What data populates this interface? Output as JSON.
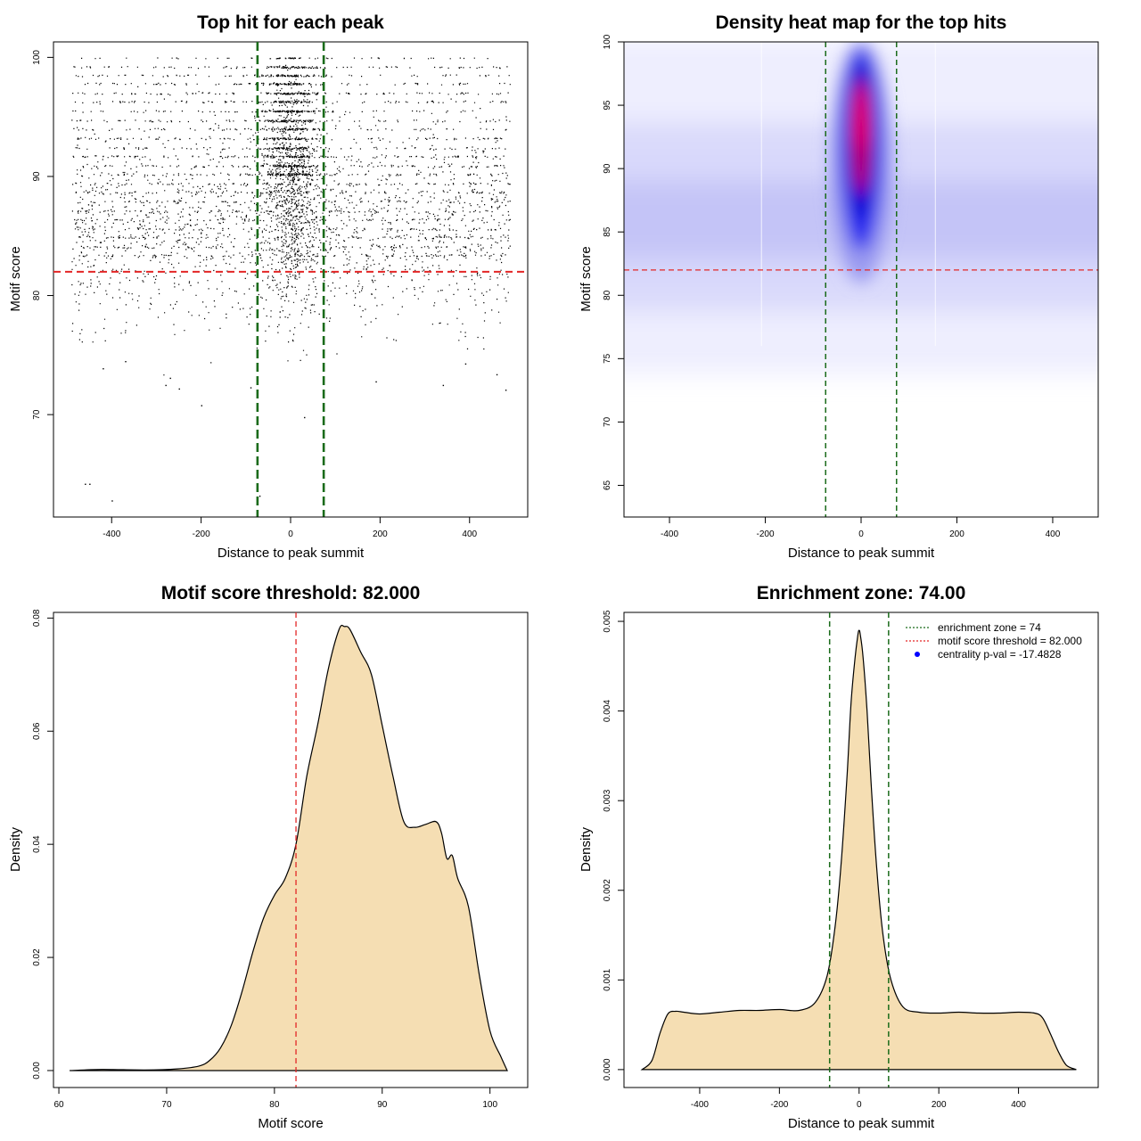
{
  "chart_data": [
    {
      "type": "scatter",
      "title": "Top hit for each peak",
      "xlabel": "Distance to peak summit",
      "ylabel": "Motif score",
      "xlim": [
        -530,
        530
      ],
      "ylim": [
        61.4,
        101.3
      ],
      "xticks": [
        -400,
        -200,
        0,
        200,
        400
      ],
      "yticks": [
        70,
        80,
        90,
        100
      ],
      "hline": 82.0,
      "vlines": [
        -74,
        74
      ],
      "hline_color": "#e32626",
      "vline_color": "#1a6b1a",
      "points": [
        [
          -460,
          64.2
        ],
        [
          -450,
          64.2
        ],
        [
          -400,
          62.8
        ],
        [
          -200,
          70.8
        ],
        [
          -280,
          72.5
        ],
        [
          -270,
          73.1
        ],
        [
          -250,
          72.2
        ],
        [
          -70,
          63.2
        ],
        [
          30,
          69.8
        ],
        [
          -420,
          73.9
        ],
        [
          -370,
          74.5
        ],
        [
          480,
          72.1
        ],
        [
          460,
          73.4
        ],
        [
          -90,
          72.3
        ],
        [
          340,
          72.5
        ],
        [
          190,
          72.8
        ],
        [
          390,
          74.3
        ]
      ],
      "dense_region": {
        "x_range": [
          -490,
          490
        ],
        "y_range": [
          72,
          100
        ],
        "peak_x": 0,
        "note_rows_y": [
          100,
          99.2,
          98.5,
          97.8,
          97.0,
          96.3,
          95.5,
          94.7,
          94.0,
          93.2,
          92.4,
          91.7,
          90.9,
          90.2,
          89.4,
          88.7,
          87.9,
          87.1,
          86.4,
          85.6,
          84.9,
          84.1,
          83.4
        ]
      }
    },
    {
      "type": "heatmap",
      "title": "Density heat map for the top hits",
      "xlabel": "Distance to peak summit",
      "ylabel": "Motif score",
      "xlim": [
        -495,
        495
      ],
      "ylim": [
        62.5,
        100
      ],
      "xticks": [
        -400,
        -200,
        0,
        200,
        400
      ],
      "yticks": [
        65,
        70,
        75,
        80,
        85,
        90,
        95,
        100
      ],
      "hline": 82.0,
      "vlines": [
        -74,
        74
      ],
      "background_band": {
        "y_center": 85.5,
        "y_spread": 4.5
      },
      "hotspot": {
        "x_center": 0,
        "x_spread": 28,
        "y_range": [
          85,
          99
        ],
        "peak_y": 94
      }
    },
    {
      "type": "area",
      "title": "Motif score threshold: 82.000",
      "xlabel": "Motif score",
      "ylabel": "Density",
      "xlim": [
        59.5,
        103.5
      ],
      "ylim": [
        -0.003,
        0.081
      ],
      "xticks": [
        60,
        70,
        80,
        90,
        100
      ],
      "yticks": [
        0.0,
        0.02,
        0.04,
        0.06,
        0.08
      ],
      "ytick_labels": [
        "0.00",
        "0.02",
        "0.04",
        "0.06",
        "0.08"
      ],
      "vline": 82.0,
      "fill": "#f5deb3",
      "x": [
        61,
        64,
        68,
        71,
        73,
        74,
        75,
        76,
        77,
        78,
        79,
        80,
        81,
        82,
        83,
        84,
        85,
        86,
        86.5,
        87,
        88,
        89,
        90,
        91,
        92,
        93,
        94,
        95,
        95.5,
        96,
        96.5,
        97,
        98,
        99,
        100,
        101,
        101.6
      ],
      "values": [
        0.0,
        0.0002,
        0.0001,
        0.0003,
        0.0008,
        0.0018,
        0.004,
        0.008,
        0.014,
        0.021,
        0.027,
        0.031,
        0.034,
        0.04,
        0.052,
        0.061,
        0.071,
        0.078,
        0.0785,
        0.078,
        0.074,
        0.07,
        0.061,
        0.052,
        0.044,
        0.043,
        0.0435,
        0.044,
        0.042,
        0.0375,
        0.038,
        0.034,
        0.029,
        0.017,
        0.007,
        0.0025,
        0.0
      ]
    },
    {
      "type": "area",
      "title": "Enrichment zone: 74.00",
      "xlabel": "Distance to peak summit",
      "ylabel": "Density",
      "xlim": [
        -590,
        600
      ],
      "ylim": [
        -0.0002,
        0.0051
      ],
      "xticks": [
        -400,
        -200,
        0,
        200,
        400
      ],
      "yticks": [
        0.0,
        0.001,
        0.002,
        0.003,
        0.004,
        0.005
      ],
      "ytick_labels": [
        "0.000",
        "0.001",
        "0.002",
        "0.003",
        "0.004",
        "0.005"
      ],
      "vlines": [
        -74,
        74
      ],
      "fill": "#f5deb3",
      "x": [
        -545,
        -520,
        -500,
        -480,
        -460,
        -440,
        -400,
        -350,
        -300,
        -250,
        -200,
        -150,
        -110,
        -80,
        -60,
        -45,
        -30,
        -20,
        -10,
        -3,
        0,
        3,
        10,
        20,
        30,
        45,
        60,
        80,
        110,
        150,
        200,
        250,
        300,
        350,
        400,
        440,
        460,
        480,
        500,
        520,
        545
      ],
      "values": [
        0.0,
        0.0001,
        0.0004,
        0.00062,
        0.00065,
        0.00064,
        0.00062,
        0.00064,
        0.00066,
        0.00066,
        0.00067,
        0.00066,
        0.00075,
        0.00105,
        0.0016,
        0.0023,
        0.0033,
        0.0041,
        0.0046,
        0.00485,
        0.0049,
        0.00485,
        0.0046,
        0.004,
        0.0032,
        0.0022,
        0.0015,
        0.001,
        0.0007,
        0.00064,
        0.00063,
        0.00064,
        0.00063,
        0.00063,
        0.00064,
        0.00063,
        0.00058,
        0.0004,
        0.0002,
        5e-05,
        0.0
      ]
    }
  ],
  "legend": {
    "entries": [
      {
        "label": "enrichment zone = 74",
        "color": "#1a6b1a",
        "kind": "line"
      },
      {
        "label": "motif score threshold = 82.000",
        "color": "#e32626",
        "kind": "line"
      },
      {
        "label": "centrality p-val = -17.4828",
        "color": "#0000ff",
        "kind": "point"
      }
    ],
    "placement": "top-right"
  }
}
